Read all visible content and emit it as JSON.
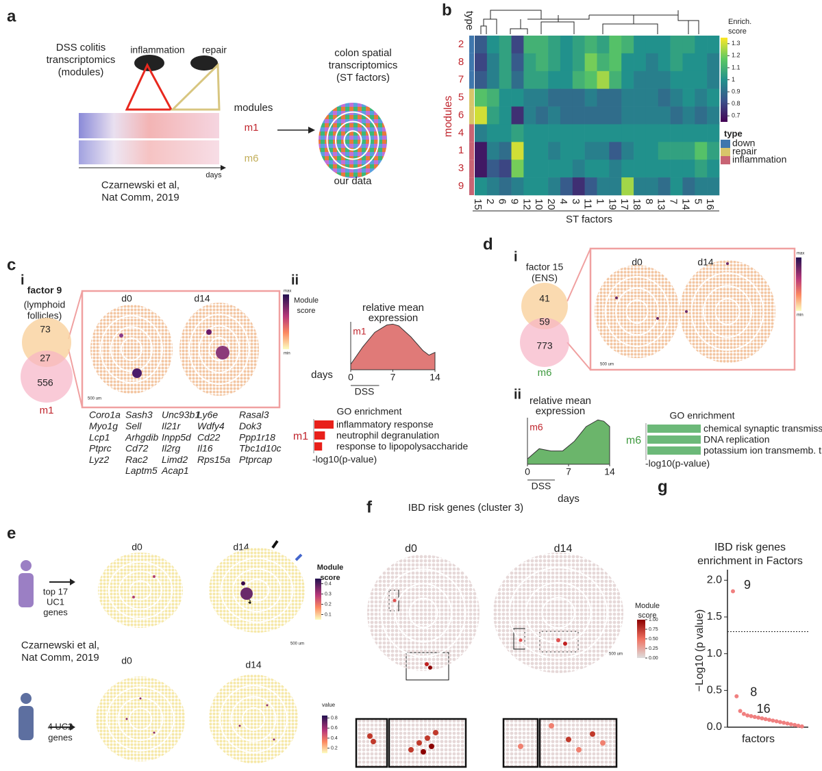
{
  "panels": {
    "a": {
      "label": "a",
      "source_lines": [
        "DSS colitis",
        "transcriptomics",
        "(modules)"
      ],
      "inflammation": "inflammation",
      "repair": "repair",
      "modules": "modules",
      "m1": "m1",
      "m6": "m6",
      "days": "days",
      "citation_lines": [
        "Czarnewski et al,",
        "Nat Comm, 2019"
      ],
      "target_lines": [
        "colon spatial",
        "transcriptomics",
        "(ST factors)"
      ],
      "our_data": "our data"
    },
    "b": {
      "label": "b",
      "type_label": "type",
      "row_axis_label": "modules",
      "col_axis_label": "ST factors",
      "rows": [
        "2",
        "8",
        "7",
        "5",
        "6",
        "4",
        "1",
        "3",
        "9"
      ],
      "row_types": [
        "down",
        "down",
        "down",
        "repair",
        "repair",
        "inflammation",
        "inflammation",
        "inflammation",
        "inflammation"
      ],
      "columns": [
        "15",
        "2",
        "6",
        "9",
        "12",
        "10",
        "20",
        "4",
        "3",
        "11",
        "1",
        "19",
        "17",
        "18",
        "8",
        "13",
        "7",
        "14",
        "5",
        "16"
      ],
      "values": [
        [
          0.85,
          1.0,
          1.05,
          0.8,
          1.1,
          1.1,
          1.05,
          1.0,
          1.05,
          1.1,
          1.05,
          1.15,
          1.1,
          1.0,
          1.0,
          1.0,
          1.05,
          1.05,
          1.0,
          1.0
        ],
        [
          0.8,
          0.95,
          1.05,
          0.85,
          1.05,
          1.1,
          1.05,
          1.0,
          1.05,
          1.2,
          1.1,
          1.15,
          1.0,
          1.0,
          0.95,
          1.0,
          1.05,
          1.0,
          1.0,
          0.95
        ],
        [
          0.85,
          0.95,
          1.05,
          0.9,
          1.05,
          1.05,
          1.0,
          1.0,
          1.1,
          1.15,
          1.25,
          1.1,
          1.0,
          0.95,
          0.95,
          0.95,
          1.0,
          1.0,
          1.0,
          0.95
        ],
        [
          1.15,
          1.1,
          1.0,
          1.0,
          0.95,
          0.95,
          0.9,
          0.9,
          0.9,
          0.95,
          0.9,
          0.9,
          0.95,
          0.95,
          0.95,
          0.9,
          0.95,
          1.0,
          0.95,
          1.0
        ],
        [
          1.3,
          1.05,
          1.0,
          0.75,
          0.95,
          0.9,
          0.95,
          0.9,
          0.9,
          0.9,
          0.9,
          0.9,
          0.95,
          0.95,
          0.95,
          0.95,
          0.9,
          0.95,
          0.9,
          0.95
        ],
        [
          0.95,
          1.0,
          1.0,
          1.05,
          1.0,
          1.0,
          1.0,
          1.0,
          1.0,
          1.0,
          1.0,
          1.0,
          1.0,
          1.0,
          1.0,
          1.0,
          1.0,
          1.0,
          1.0,
          1.0
        ],
        [
          0.7,
          0.95,
          0.9,
          1.3,
          1.0,
          1.0,
          0.95,
          1.0,
          1.0,
          0.95,
          0.95,
          0.85,
          0.95,
          1.0,
          1.0,
          1.05,
          1.05,
          1.05,
          1.15,
          1.05
        ],
        [
          0.7,
          0.85,
          0.8,
          1.2,
          1.0,
          1.0,
          1.0,
          1.0,
          0.95,
          1.0,
          1.0,
          0.95,
          1.0,
          1.0,
          1.0,
          1.0,
          1.0,
          1.0,
          1.05,
          1.0
        ],
        [
          1.0,
          0.95,
          0.9,
          0.95,
          1.0,
          1.0,
          0.95,
          0.85,
          0.75,
          0.85,
          0.95,
          0.95,
          1.25,
          0.95,
          0.95,
          0.9,
          1.0,
          0.9,
          0.95,
          0.95
        ]
      ],
      "colorbar_title_lines": [
        "Enrich.",
        "score"
      ],
      "colorbar_lim": [
        0.65,
        1.35
      ],
      "colorbar_ticks": [
        0.7,
        0.8,
        0.9,
        1,
        1.1,
        1.2,
        1.3
      ],
      "legend_title": "type",
      "legend": [
        {
          "name": "down",
          "color": "#3f77ad"
        },
        {
          "name": "repair",
          "color": "#d8c66a"
        },
        {
          "name": "inflammation",
          "color": "#c86474"
        }
      ]
    },
    "c": {
      "label": "c",
      "sub_i": "i",
      "factor_lines": [
        "factor 9",
        "(lymphoid",
        "follicles)"
      ],
      "venn": {
        "factor_only": 73,
        "overlap": 27,
        "module_only": 556
      },
      "module": "m1",
      "d0": "d0",
      "d14": "d14",
      "colorbar_title_lines": [
        "Module",
        "score"
      ],
      "max": "max",
      "min": "min",
      "scale": "500 um",
      "genes": [
        [
          "Coro1a",
          "Myo1g",
          "Lcp1",
          "Ptprc",
          "Lyz2"
        ],
        [
          "Sash3",
          "Sell",
          "Arhgdib",
          "Cd72",
          "Rac2",
          "Laptm5"
        ],
        [
          "Unc93b1",
          "Il21r",
          "Inpp5d",
          "Il2rg",
          "Limd2",
          "Acap1"
        ],
        [
          "Ly6e",
          "Wdfy4",
          "Cd22",
          "Il16",
          "Rps15a"
        ],
        [
          "Rasal3",
          "Dok3",
          "Ppp1r18",
          "Tbc1d10c",
          "Ptprcap"
        ]
      ],
      "sub_ii": "ii",
      "expr_title_lines": [
        "relative mean",
        "expression"
      ],
      "curve": {
        "module": "m1",
        "x": [
          0,
          2,
          4,
          6,
          7,
          8,
          10,
          12,
          13,
          14
        ],
        "values": [
          0.12,
          0.5,
          0.82,
          0.98,
          1.0,
          0.96,
          0.72,
          0.42,
          0.32,
          0.38
        ],
        "xlim": [
          0,
          14
        ],
        "ylim": [
          0,
          1.05
        ],
        "xticks": [
          0,
          7,
          14
        ],
        "xlabel": "days",
        "dss": "DSS",
        "color": "#e07a78"
      },
      "go": {
        "title": "GO enrichment",
        "module": "m1",
        "terms": [
          "inflammatory response",
          "neutrophil degranulation",
          "response to lipopolysaccharide"
        ],
        "values": [
          1,
          0.55,
          0.4
        ],
        "xlim": [
          0,
          1
        ],
        "xlabel": "-log10(p-value)",
        "color": "#e8201a"
      }
    },
    "d": {
      "label": "d",
      "sub_i": "i",
      "factor_lines": [
        "factor 15",
        "(ENS)"
      ],
      "venn": {
        "factor_only": 41,
        "overlap": 59,
        "module_only": 773
      },
      "module": "m6",
      "d0": "d0",
      "d14": "d14",
      "max": "max",
      "min": "min",
      "scale": "500 um",
      "sub_ii": "ii",
      "expr_title_lines": [
        "relative mean",
        "expression"
      ],
      "curve": {
        "module": "m6",
        "x": [
          0,
          2,
          4,
          6,
          8,
          10,
          12,
          13,
          14
        ],
        "values": [
          0.12,
          0.35,
          0.3,
          0.3,
          0.52,
          0.85,
          1.0,
          0.97,
          0.85
        ],
        "xlim": [
          0,
          14
        ],
        "ylim": [
          0,
          1.05
        ],
        "xticks": [
          0,
          7,
          14
        ],
        "xlabel": "days",
        "dss": "DSS",
        "color": "#6bb56b"
      },
      "go": {
        "title": "GO enrichment",
        "module": "m6",
        "terms": [
          "chemical synaptic transmission",
          "DNA replication",
          "potassium ion transmemb. transp."
        ],
        "values": [
          1,
          1,
          1
        ],
        "xlim": [
          0,
          1
        ],
        "xlabel": "-log10(p-value)",
        "color": "#6cb979"
      }
    },
    "e": {
      "label": "e",
      "d0": "d0",
      "d14": "d14",
      "uc1_lines": [
        "top 17",
        "UC1",
        "genes"
      ],
      "colorbar1": {
        "title_lines": [
          "Module",
          "score"
        ],
        "lim": [
          0.05,
          0.45
        ],
        "ticks": [
          0.1,
          0.2,
          0.3,
          0.4
        ]
      },
      "scale": "500 um",
      "citation_lines": [
        "Czarnewski et al,",
        "Nat Comm, 2019"
      ],
      "d0_b": "d0",
      "d14_b": "d14",
      "uc2_lines": [
        "4 UC2",
        "genes"
      ],
      "colorbar2": {
        "title_lines": [
          "value"
        ],
        "lim": [
          0.1,
          0.85
        ],
        "ticks": [
          0.2,
          0.4,
          0.6,
          0.8
        ]
      }
    },
    "f": {
      "label": "f",
      "title": "IBD risk genes (cluster 3)",
      "d0": "d0",
      "d14": "d14",
      "colorbar": {
        "title_lines": [
          "Module",
          "score"
        ],
        "lim": [
          0,
          1
        ],
        "ticks": [
          {
            "value": 0,
            "label": "0.00"
          },
          0.25,
          {
            "value": 0.5,
            "label": "0.50"
          },
          0.75,
          {
            "value": 1,
            "label": "1.00"
          }
        ]
      },
      "scale": "500 um"
    }
  },
  "chart_data": {
    "type": "scatter",
    "panel_label": "g",
    "title_lines": [
      "IBD risk genes",
      "enrichment in Factors"
    ],
    "ylabel": "−Log10 (p value)",
    "xlabel": "factors",
    "values": [
      1.85,
      0.42,
      0.22,
      0.18,
      0.16,
      0.15,
      0.14,
      0.13,
      0.12,
      0.11,
      0.1,
      0.09,
      0.08,
      0.07,
      0.06,
      0.05,
      0.04,
      0.03,
      0.02,
      0.01
    ],
    "point_labels": [
      "9",
      "8",
      "16",
      null,
      null,
      null,
      null,
      null,
      null,
      null,
      null,
      null,
      null,
      null,
      null,
      null,
      null,
      null,
      null,
      null
    ],
    "ylim": [
      0,
      2.05
    ],
    "yticks": [
      {
        "value": 0,
        "label": "0.0"
      },
      0.5,
      {
        "value": 1,
        "label": "1.0"
      },
      1.5,
      {
        "value": 2,
        "label": "2.0"
      }
    ],
    "threshold": 1.3,
    "color": "#f08080"
  }
}
